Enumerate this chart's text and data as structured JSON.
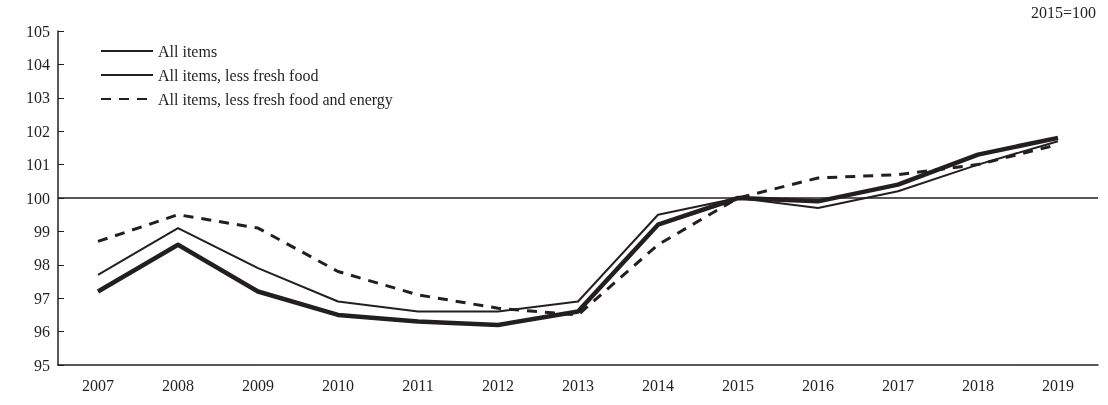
{
  "chart_data": {
    "type": "line",
    "categories": [
      "2007",
      "2008",
      "2009",
      "2010",
      "2011",
      "2012",
      "2013",
      "2014",
      "2015",
      "2016",
      "2017",
      "2018",
      "2019"
    ],
    "series": [
      {
        "name": "All items",
        "color": "#231f20",
        "line_style": "solid",
        "values": [
          97.2,
          98.6,
          97.2,
          96.5,
          96.3,
          96.2,
          96.6,
          99.2,
          100.0,
          99.9,
          100.4,
          101.3,
          101.8
        ]
      },
      {
        "name": "All items, less fresh food",
        "color": "#231f20",
        "line_style": "solid",
        "values": [
          97.7,
          99.1,
          97.9,
          96.9,
          96.6,
          96.6,
          96.9,
          99.5,
          100.0,
          99.7,
          100.2,
          101.0,
          101.7
        ]
      },
      {
        "name": "All items, less fresh food and energy",
        "color": "#231f20",
        "line_style": "dashed",
        "values": [
          98.7,
          99.5,
          99.1,
          97.8,
          97.1,
          96.7,
          96.5,
          98.6,
          100.0,
          100.6,
          100.7,
          101.0,
          101.6
        ]
      }
    ],
    "ylim": [
      95,
      105
    ],
    "yticks": [
      95,
      96,
      97,
      98,
      99,
      100,
      101,
      102,
      103,
      104,
      105
    ],
    "ref_lines": [
      {
        "axis": "y",
        "value": 100,
        "color": "#231f20",
        "line_style": "solid"
      }
    ],
    "annotations": [
      "2015=100"
    ],
    "grid": false,
    "legend": "top left",
    "marker": "none"
  }
}
